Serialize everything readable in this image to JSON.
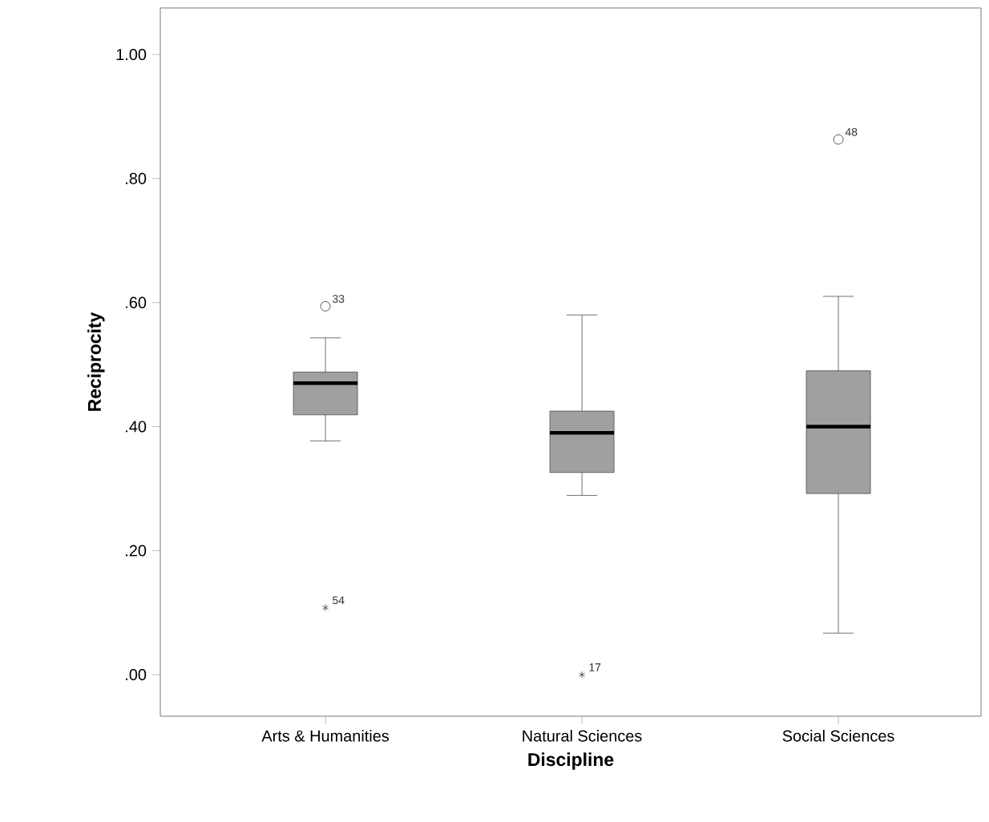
{
  "chart_data": {
    "type": "box",
    "xlabel": "Discipline",
    "ylabel": "Reciprocity",
    "categories": [
      "Arts & Humanities",
      "Natural Sciences",
      "Social Sciences"
    ],
    "color": "#a0a0a0",
    "boxes": [
      {
        "low": 0.377,
        "q1": 0.419,
        "median": 0.47,
        "q3": 0.488,
        "high": 0.543,
        "outliers": [
          0.594,
          0.108
        ]
      },
      {
        "low": 0.289,
        "q1": 0.326,
        "median": 0.39,
        "q3": 0.425,
        "high": 0.58,
        "outliers": [
          0.0
        ]
      },
      {
        "low": 0.067,
        "q1": 0.292,
        "median": 0.4,
        "q3": 0.49,
        "high": 0.61,
        "outliers": [
          0.863
        ]
      }
    ],
    "ylim": [
      -0.067,
      1.075
    ],
    "yticks": [
      {
        "value": 0,
        "label": ".00"
      },
      {
        "value": 0.2,
        "label": ".20"
      },
      {
        "value": 0.4,
        "label": ".40"
      },
      {
        "value": 0.6,
        "label": ".60"
      },
      {
        "value": 0.8,
        "label": ".80"
      },
      {
        "value": 1.0,
        "label": "1.00"
      }
    ],
    "annotations": [
      "33",
      "54",
      "17",
      "48"
    ]
  }
}
